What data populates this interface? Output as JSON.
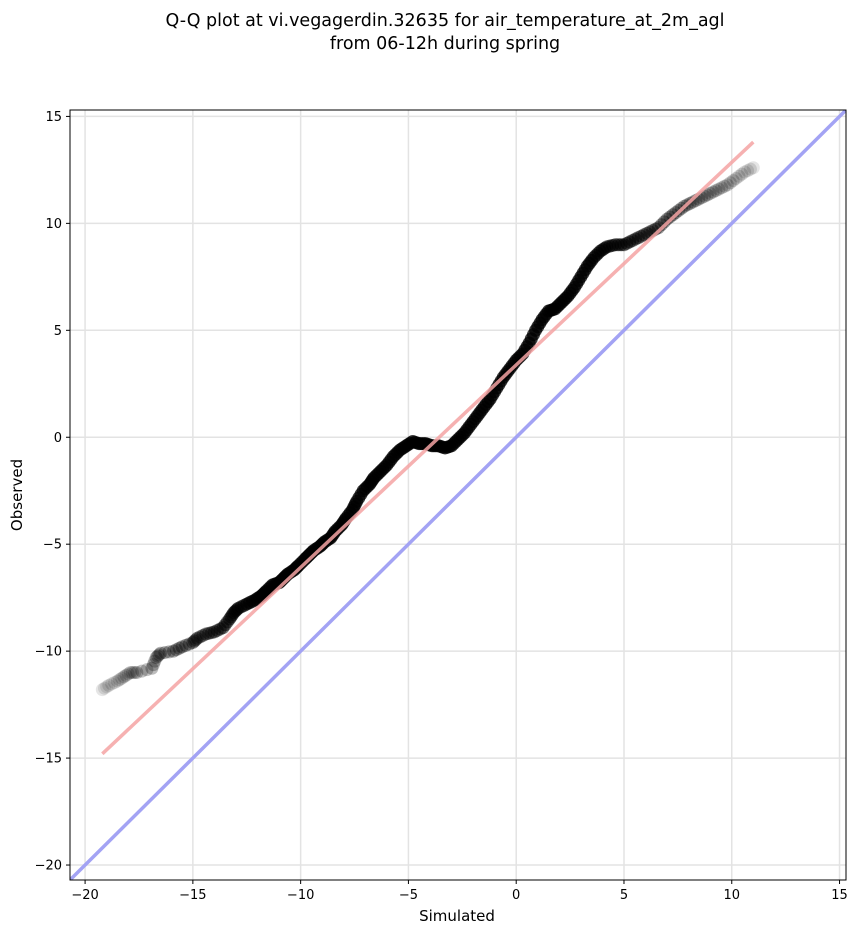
{
  "chart_data": {
    "type": "scatter",
    "title": [
      "Q-Q plot at vi.vegagerdin.32635 for air_temperature_at_2m_agl",
      "from 06-12h during spring"
    ],
    "xlabel": "Simulated",
    "ylabel": "Observed",
    "xlim": [
      -20.7,
      15.3
    ],
    "ylim": [
      -20.7,
      15.3
    ],
    "xticks": [
      -20,
      -15,
      -10,
      -5,
      0,
      5,
      10,
      15
    ],
    "yticks": [
      -20,
      -15,
      -10,
      -5,
      0,
      5,
      10,
      15
    ],
    "grid": true,
    "colors": {
      "points": "#000000",
      "fit_line": "#f4a3a3",
      "identity_line": "#a3a3f4"
    },
    "series": [
      {
        "type": "quantiles",
        "x": [
          -19.2,
          -18.9,
          -18.5,
          -18.2,
          -17.9,
          -17.6,
          -16.9,
          -16.7,
          -16.5,
          -15.9,
          -15.5,
          -15.0,
          -14.8,
          -14.4,
          -14.0,
          -13.6,
          -13.3,
          -13.1,
          -12.9,
          -12.5,
          -12.1,
          -11.8,
          -11.6,
          -11.3,
          -11.0,
          -10.8,
          -10.6,
          -10.3,
          -10.1,
          -9.8,
          -9.6,
          -9.4,
          -9.1,
          -8.9,
          -8.6,
          -8.4,
          -8.1,
          -7.9,
          -7.6,
          -7.4,
          -7.1,
          -6.8,
          -6.6,
          -6.3,
          -6.0,
          -5.7,
          -5.4,
          -5.1,
          -4.8,
          -4.5,
          -4.2,
          -3.9,
          -3.6,
          -3.3,
          -3.0,
          -2.7,
          -2.4,
          -2.1,
          -1.8,
          -1.5,
          -1.2,
          -0.9,
          -0.6,
          -0.3,
          0.0,
          0.3,
          0.6,
          0.9,
          1.2,
          1.5,
          1.8,
          2.1,
          2.4,
          2.7,
          3.0,
          3.3,
          3.6,
          3.9,
          4.2,
          4.6,
          5.0,
          5.4,
          5.8,
          6.2,
          6.6,
          7.0,
          7.4,
          7.8,
          8.2,
          8.6,
          9.0,
          9.4,
          9.8,
          10.2,
          10.6,
          11.0
        ],
        "y": [
          -11.8,
          -11.6,
          -11.4,
          -11.2,
          -11.0,
          -11.0,
          -10.8,
          -10.3,
          -10.1,
          -10.0,
          -9.8,
          -9.6,
          -9.4,
          -9.2,
          -9.1,
          -8.9,
          -8.5,
          -8.2,
          -8.0,
          -7.8,
          -7.6,
          -7.4,
          -7.2,
          -6.9,
          -6.8,
          -6.6,
          -6.4,
          -6.2,
          -6.0,
          -5.7,
          -5.5,
          -5.3,
          -5.1,
          -4.9,
          -4.7,
          -4.4,
          -4.1,
          -3.8,
          -3.4,
          -3.0,
          -2.5,
          -2.2,
          -1.9,
          -1.6,
          -1.3,
          -0.9,
          -0.6,
          -0.4,
          -0.2,
          -0.3,
          -0.3,
          -0.4,
          -0.4,
          -0.5,
          -0.4,
          -0.1,
          0.2,
          0.6,
          1.0,
          1.4,
          1.8,
          2.3,
          2.8,
          3.2,
          3.6,
          3.9,
          4.4,
          5.0,
          5.5,
          5.9,
          6.0,
          6.3,
          6.6,
          7.0,
          7.5,
          8.0,
          8.4,
          8.7,
          8.9,
          9.0,
          9.0,
          9.2,
          9.4,
          9.6,
          9.8,
          10.2,
          10.5,
          10.8,
          11.0,
          11.2,
          11.4,
          11.6,
          11.8,
          12.1,
          12.4,
          12.6
        ],
        "point_color": "#000000"
      },
      {
        "type": "fit-line",
        "x": [
          -19.2,
          11.0
        ],
        "y": [
          -14.8,
          13.8
        ],
        "color": "#f4a3a3"
      },
      {
        "type": "identity-line",
        "x": [
          -20.7,
          15.3
        ],
        "y": [
          -20.7,
          15.3
        ],
        "color": "#a3a3f4"
      }
    ]
  }
}
